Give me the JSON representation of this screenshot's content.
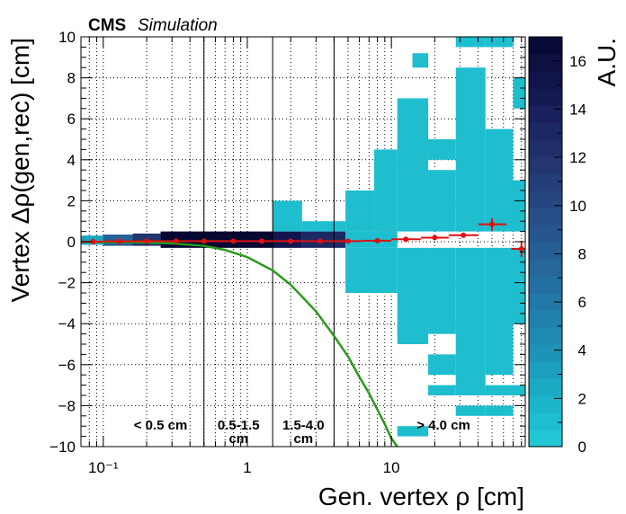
{
  "header": {
    "experiment": "CMS",
    "tag": "Simulation"
  },
  "chart_data": {
    "type": "heatmap",
    "xlabel": "Gen. vertex ρ [cm]",
    "ylabel": "Vertex Δρ(gen,rec) [cm]",
    "zlabel": "A.U.",
    "x_scale": "log",
    "xlim": [
      0.07,
      85
    ],
    "ylim": [
      -10,
      10
    ],
    "zlim": [
      0,
      17
    ],
    "x_ticks": [
      {
        "value": 0.1,
        "label": "10⁻¹"
      },
      {
        "value": 1,
        "label": "1"
      },
      {
        "value": 10,
        "label": "10"
      }
    ],
    "y_ticks": [
      {
        "value": 10,
        "label": "10"
      },
      {
        "value": 8,
        "label": "8"
      },
      {
        "value": 6,
        "label": "6"
      },
      {
        "value": 4,
        "label": "4"
      },
      {
        "value": 2,
        "label": "2"
      },
      {
        "value": 0,
        "label": "0"
      },
      {
        "value": -2,
        "label": "−2"
      },
      {
        "value": -4,
        "label": "−4"
      },
      {
        "value": -6,
        "label": "−6"
      },
      {
        "value": -8,
        "label": "−8"
      },
      {
        "value": -10,
        "label": "−10"
      }
    ],
    "z_ticks": [
      {
        "value": 0,
        "label": "0"
      },
      {
        "value": 2,
        "label": "2"
      },
      {
        "value": 4,
        "label": "4"
      },
      {
        "value": 6,
        "label": "6"
      },
      {
        "value": 8,
        "label": "8"
      },
      {
        "value": 10,
        "label": "10"
      },
      {
        "value": 12,
        "label": "12"
      },
      {
        "value": 14,
        "label": "14"
      },
      {
        "value": 16,
        "label": "16"
      }
    ],
    "grid": true,
    "region_boundaries": [
      0.5,
      1.5,
      4.0
    ],
    "region_labels": [
      {
        "lines": [
          "< 0.5 cm"
        ],
        "x": 0.25
      },
      {
        "lines": [
          "0.5-1.5",
          "cm"
        ],
        "x": 0.87
      },
      {
        "lines": [
          "1.5-4.0",
          "cm"
        ],
        "x": 2.45
      },
      {
        "lines": [
          "> 4.0 cm"
        ],
        "x": 23
      }
    ],
    "cells": [
      {
        "x0": 0.07,
        "x1": 0.1,
        "y0": -0.15,
        "y1": 0.3,
        "z": 3
      },
      {
        "x0": 0.1,
        "x1": 0.16,
        "y0": -0.2,
        "y1": 0.35,
        "z": 8
      },
      {
        "x0": 0.16,
        "x1": 0.25,
        "y0": -0.2,
        "y1": 0.4,
        "z": 12
      },
      {
        "x0": 0.25,
        "x1": 1.5,
        "y0": -0.3,
        "y1": 0.5,
        "z": 17
      },
      {
        "x0": 1.5,
        "x1": 2.4,
        "y0": -0.3,
        "y1": 0.5,
        "z": 15
      },
      {
        "x0": 2.4,
        "x1": 4.8,
        "y0": -0.3,
        "y1": 0.5,
        "z": 13
      },
      {
        "x0": 4.8,
        "x1": 11,
        "y0": -0.3,
        "y1": 0.5,
        "z": 1
      },
      {
        "x0": 1.5,
        "x1": 2.4,
        "y0": 0.5,
        "y1": 2.0,
        "z": 1
      },
      {
        "x0": 2.4,
        "x1": 4.8,
        "y0": 0.5,
        "y1": 1.0,
        "z": 1
      },
      {
        "x0": 4.8,
        "x1": 7.6,
        "y0": 0.5,
        "y1": 2.5,
        "z": 1
      },
      {
        "x0": 7.6,
        "x1": 11,
        "y0": 0.5,
        "y1": 4.5,
        "z": 1
      },
      {
        "x0": 7.6,
        "x1": 11,
        "y0": 3.5,
        "y1": 4.0,
        "z": 1
      },
      {
        "x0": 11,
        "x1": 18,
        "y0": 0.5,
        "y1": 7.0,
        "z": 1
      },
      {
        "x0": 18,
        "x1": 28,
        "y0": 0.5,
        "y1": 3.5,
        "z": 1
      },
      {
        "x0": 18,
        "x1": 28,
        "y0": 4.0,
        "y1": 5.0,
        "z": 1
      },
      {
        "x0": 28,
        "x1": 45,
        "y0": 0.5,
        "y1": 8.5,
        "z": 1
      },
      {
        "x0": 45,
        "x1": 70,
        "y0": 0.5,
        "y1": 5.5,
        "z": 1
      },
      {
        "x0": 70,
        "x1": 85,
        "y0": 0.5,
        "y1": 3.0,
        "z": 1
      },
      {
        "x0": 14,
        "x1": 18,
        "y0": 8.5,
        "y1": 9.2,
        "z": 1
      },
      {
        "x0": 28,
        "x1": 45,
        "y0": 9.5,
        "y1": 10,
        "z": 1
      },
      {
        "x0": 45,
        "x1": 70,
        "y0": 9.5,
        "y1": 10,
        "z": 1
      },
      {
        "x0": 70,
        "x1": 85,
        "y0": 6.5,
        "y1": 8.0,
        "z": 1
      },
      {
        "x0": 4.8,
        "x1": 11,
        "y0": -0.3,
        "y1": -2.5,
        "z": 1
      },
      {
        "x0": 11,
        "x1": 18,
        "y0": -0.3,
        "y1": -5.0,
        "z": 1
      },
      {
        "x0": 18,
        "x1": 28,
        "y0": -0.3,
        "y1": -4.5,
        "z": 1
      },
      {
        "x0": 28,
        "x1": 45,
        "y0": -0.3,
        "y1": -7.5,
        "z": 1
      },
      {
        "x0": 45,
        "x1": 70,
        "y0": -0.3,
        "y1": -6.5,
        "z": 1
      },
      {
        "x0": 70,
        "x1": 85,
        "y0": -0.3,
        "y1": -4.0,
        "z": 1
      },
      {
        "x0": 18,
        "x1": 28,
        "y0": -5.5,
        "y1": -6.5,
        "z": 1
      },
      {
        "x0": 18,
        "x1": 28,
        "y0": -7.0,
        "y1": -7.5,
        "z": 1
      },
      {
        "x0": 28,
        "x1": 45,
        "y0": -8.0,
        "y1": -8.5,
        "z": 1
      },
      {
        "x0": 45,
        "x1": 70,
        "y0": -7.0,
        "y1": -7.5,
        "z": 1
      },
      {
        "x0": 45,
        "x1": 70,
        "y0": -8.0,
        "y1": -8.5,
        "z": 1
      },
      {
        "x0": 70,
        "x1": 85,
        "y0": -7.0,
        "y1": -7.5,
        "z": 1
      },
      {
        "x0": 11,
        "x1": 18,
        "y0": -9.5,
        "y1": -9.0,
        "z": 1
      },
      {
        "x0": 11,
        "x1": 18,
        "y0": -4.0,
        "y1": -4.5,
        "z": 1
      }
    ],
    "profile": {
      "color": "#dd1111",
      "points": [
        {
          "x": 0.085,
          "y": 0.0,
          "xerr": [
            0.07,
            0.1
          ],
          "yerr": 0.05
        },
        {
          "x": 0.13,
          "y": 0.02,
          "xerr": [
            0.1,
            0.16
          ],
          "yerr": 0.05
        },
        {
          "x": 0.2,
          "y": 0.03,
          "xerr": [
            0.16,
            0.25
          ],
          "yerr": 0.05
        },
        {
          "x": 0.32,
          "y": 0.03,
          "xerr": [
            0.25,
            0.4
          ],
          "yerr": 0.05
        },
        {
          "x": 0.5,
          "y": 0.03,
          "xerr": [
            0.4,
            0.63
          ],
          "yerr": 0.05
        },
        {
          "x": 0.8,
          "y": 0.03,
          "xerr": [
            0.63,
            1.0
          ],
          "yerr": 0.05
        },
        {
          "x": 1.26,
          "y": 0.03,
          "xerr": [
            1.0,
            1.6
          ],
          "yerr": 0.05
        },
        {
          "x": 2.0,
          "y": 0.03,
          "xerr": [
            1.6,
            2.5
          ],
          "yerr": 0.05
        },
        {
          "x": 3.2,
          "y": 0.03,
          "xerr": [
            2.5,
            4.0
          ],
          "yerr": 0.05
        },
        {
          "x": 5.0,
          "y": 0.03,
          "xerr": [
            4.0,
            6.3
          ],
          "yerr": 0.05
        },
        {
          "x": 8.0,
          "y": 0.05,
          "xerr": [
            6.3,
            10
          ],
          "yerr": 0.05
        },
        {
          "x": 12.6,
          "y": 0.12,
          "xerr": [
            10,
            16
          ],
          "yerr": 0.08
        },
        {
          "x": 20,
          "y": 0.2,
          "xerr": [
            16,
            25
          ],
          "yerr": 0.1
        },
        {
          "x": 31.6,
          "y": 0.32,
          "xerr": [
            25,
            40
          ],
          "yerr": 0.12
        },
        {
          "x": 50,
          "y": 0.85,
          "xerr": [
            40,
            63
          ],
          "yerr": 0.3
        },
        {
          "x": 80,
          "y": -0.35,
          "xerr": [
            68,
            85
          ],
          "yerr": 0.4
        }
      ]
    },
    "boundary_curve": {
      "color": "#2a9a1a",
      "x": [
        0.07,
        0.1,
        0.15,
        0.2,
        0.3,
        0.5,
        0.7,
        1.0,
        1.5,
        2.0,
        3.0,
        4.0,
        5.0,
        6.0,
        7.0,
        8.0,
        9.0,
        10.0,
        11.0
      ],
      "y": [
        -0.005,
        -0.01,
        -0.02,
        -0.04,
        -0.08,
        -0.2,
        -0.4,
        -0.75,
        -1.4,
        -2.1,
        -3.4,
        -4.6,
        -5.6,
        -6.6,
        -7.4,
        -8.2,
        -8.9,
        -9.6,
        -10.0
      ]
    }
  }
}
